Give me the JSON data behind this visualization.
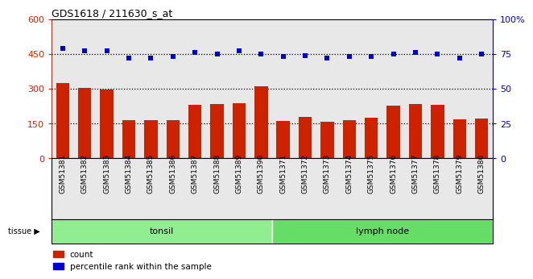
{
  "title": "GDS1618 / 211630_s_at",
  "samples": [
    "GSM51381",
    "GSM51382",
    "GSM51383",
    "GSM51384",
    "GSM51385",
    "GSM51386",
    "GSM51387",
    "GSM51388",
    "GSM51389",
    "GSM51390",
    "GSM51371",
    "GSM51372",
    "GSM51373",
    "GSM51374",
    "GSM51375",
    "GSM51376",
    "GSM51377",
    "GSM51378",
    "GSM51379",
    "GSM51380"
  ],
  "counts": [
    325,
    305,
    295,
    163,
    165,
    165,
    232,
    233,
    238,
    310,
    160,
    180,
    157,
    163,
    175,
    228,
    233,
    232,
    168,
    170
  ],
  "percentiles": [
    79,
    77,
    77,
    72,
    72,
    73,
    76,
    75,
    77,
    75,
    73,
    74,
    72,
    73,
    73,
    75,
    76,
    75,
    72,
    75
  ],
  "tissue_groups": [
    {
      "label": "tonsil",
      "start": 0,
      "end": 10,
      "color": "#90EE90"
    },
    {
      "label": "lymph node",
      "start": 10,
      "end": 20,
      "color": "#66DD66"
    }
  ],
  "bar_color": "#CC2200",
  "dot_color": "#0000CC",
  "left_ylim": [
    0,
    600
  ],
  "right_ylim": [
    0,
    100
  ],
  "left_yticks": [
    0,
    150,
    300,
    450,
    600
  ],
  "right_yticks": [
    0,
    25,
    50,
    75,
    100
  ],
  "left_ytick_labels": [
    "0",
    "150",
    "300",
    "450",
    "600"
  ],
  "right_ytick_labels": [
    "0",
    "25",
    "50",
    "75",
    "100%"
  ],
  "hlines": [
    150,
    300,
    450
  ],
  "tissue_label": "tissue ▶",
  "legend_count_label": "count",
  "legend_pct_label": "percentile rank within the sample",
  "plot_bg": "#E8E8E8",
  "fig_bg": "#FFFFFF"
}
